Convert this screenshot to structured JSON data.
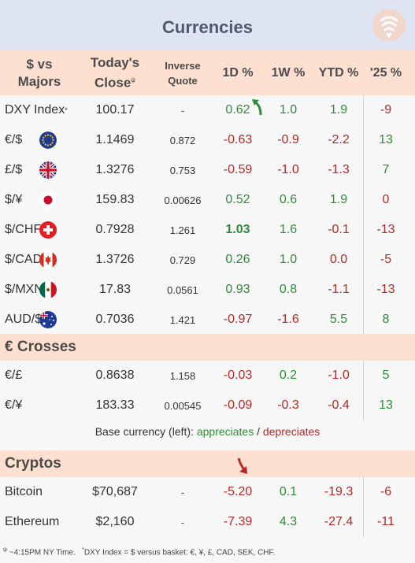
{
  "title": "Currencies",
  "header": {
    "col_pair_line1": "$ vs",
    "col_pair_line2": "Majors",
    "col_close_line1": "Today's",
    "col_close_line2": "Close",
    "col_close_mark": "ψ",
    "col_inverse_line1": "Inverse",
    "col_inverse_line2": "Quote",
    "col_1d": "1D %",
    "col_1w": "1W %",
    "col_ytd": "YTD %",
    "col_25": "'25 %"
  },
  "majors": [
    {
      "name": "DXY Index",
      "mark": "*",
      "flag": "",
      "close": "100.17",
      "inverse": "-",
      "d1": "0.62",
      "w1": "1.0",
      "ytd": "1.9",
      "y25": "-9"
    },
    {
      "name": "€/$",
      "mark": "",
      "flag": "eu",
      "close": "1.1469",
      "inverse": "0.872",
      "d1": "-0.63",
      "w1": "-0.9",
      "ytd": "-2.2",
      "y25": "13"
    },
    {
      "name": "£/$",
      "mark": "",
      "flag": "uk",
      "close": "1.3276",
      "inverse": "0.753",
      "d1": "-0.59",
      "w1": "-1.0",
      "ytd": "-1.3",
      "y25": "7"
    },
    {
      "name": "$/¥",
      "mark": "",
      "flag": "jp",
      "close": "159.83",
      "inverse": "0.00626",
      "d1": "0.52",
      "w1": "0.6",
      "ytd": "1.9",
      "y25": "0"
    },
    {
      "name": "$/CHF",
      "mark": "",
      "flag": "ch",
      "close": "0.7928",
      "inverse": "1.261",
      "d1": "1.03",
      "w1": "1.6",
      "ytd": "-0.1",
      "y25": "-13"
    },
    {
      "name": "$/CAD",
      "mark": "",
      "flag": "ca",
      "close": "1.3726",
      "inverse": "0.729",
      "d1": "0.26",
      "w1": "1.0",
      "ytd": "0.0",
      "y25": "-5"
    },
    {
      "name": "$/MXN",
      "mark": "",
      "flag": "mx",
      "close": "17.83",
      "inverse": "0.0561",
      "d1": "0.93",
      "w1": "0.8",
      "ytd": "-1.1",
      "y25": "-13"
    },
    {
      "name": "AUD/$",
      "mark": "",
      "flag": "au",
      "close": "0.7036",
      "inverse": "1.421",
      "d1": "-0.97",
      "w1": "-1.6",
      "ytd": "5.5",
      "y25": "8"
    }
  ],
  "crosses_title": "€ Crosses",
  "crosses": [
    {
      "name": "€/£",
      "close": "0.8638",
      "inverse": "1.158",
      "d1": "-0.03",
      "w1": "0.2",
      "ytd": "-1.0",
      "y25": "5"
    },
    {
      "name": "€/¥",
      "close": "183.33",
      "inverse": "0.00545",
      "d1": "-0.09",
      "w1": "-0.3",
      "ytd": "-0.4",
      "y25": "13"
    }
  ],
  "legend": {
    "prefix": "Base currency (left): ",
    "up": "appreciates",
    "sep": " / ",
    "down": "depreciates"
  },
  "cryptos_title": "Cryptos",
  "cryptos": [
    {
      "name": "Bitcoin",
      "close": "$70,687",
      "inverse": "-",
      "d1": "-5.20",
      "w1": "0.1",
      "ytd": "-19.3",
      "y25": "-6"
    },
    {
      "name": "Ethereum",
      "close": "$2,160",
      "inverse": "-",
      "d1": "-7.39",
      "w1": "4.3",
      "ytd": "-27.4",
      "y25": "-11"
    }
  ],
  "footer": {
    "mark1": "ψ",
    "text1": " ~4:15PM NY Time.",
    "mark2": "*",
    "text2": "DXY Index = $ versus basket: €, ¥, £, CAD, SEK, CHF."
  },
  "colors": {
    "up": "#2e8b3a",
    "down": "#b22a2a",
    "header_bg": "#fde0cf",
    "title_bg": "#dfe4f3"
  },
  "chart_data": {
    "type": "table",
    "title": "Currencies",
    "columns": [
      "$ vs Majors",
      "Today's Close",
      "Inverse Quote",
      "1D %",
      "1W %",
      "YTD %",
      "'25 %"
    ],
    "groups": [
      "$ vs Majors",
      "€ Crosses",
      "Cryptos"
    ],
    "highlight": {
      "row": "$/CHF",
      "column": "1D %"
    }
  }
}
